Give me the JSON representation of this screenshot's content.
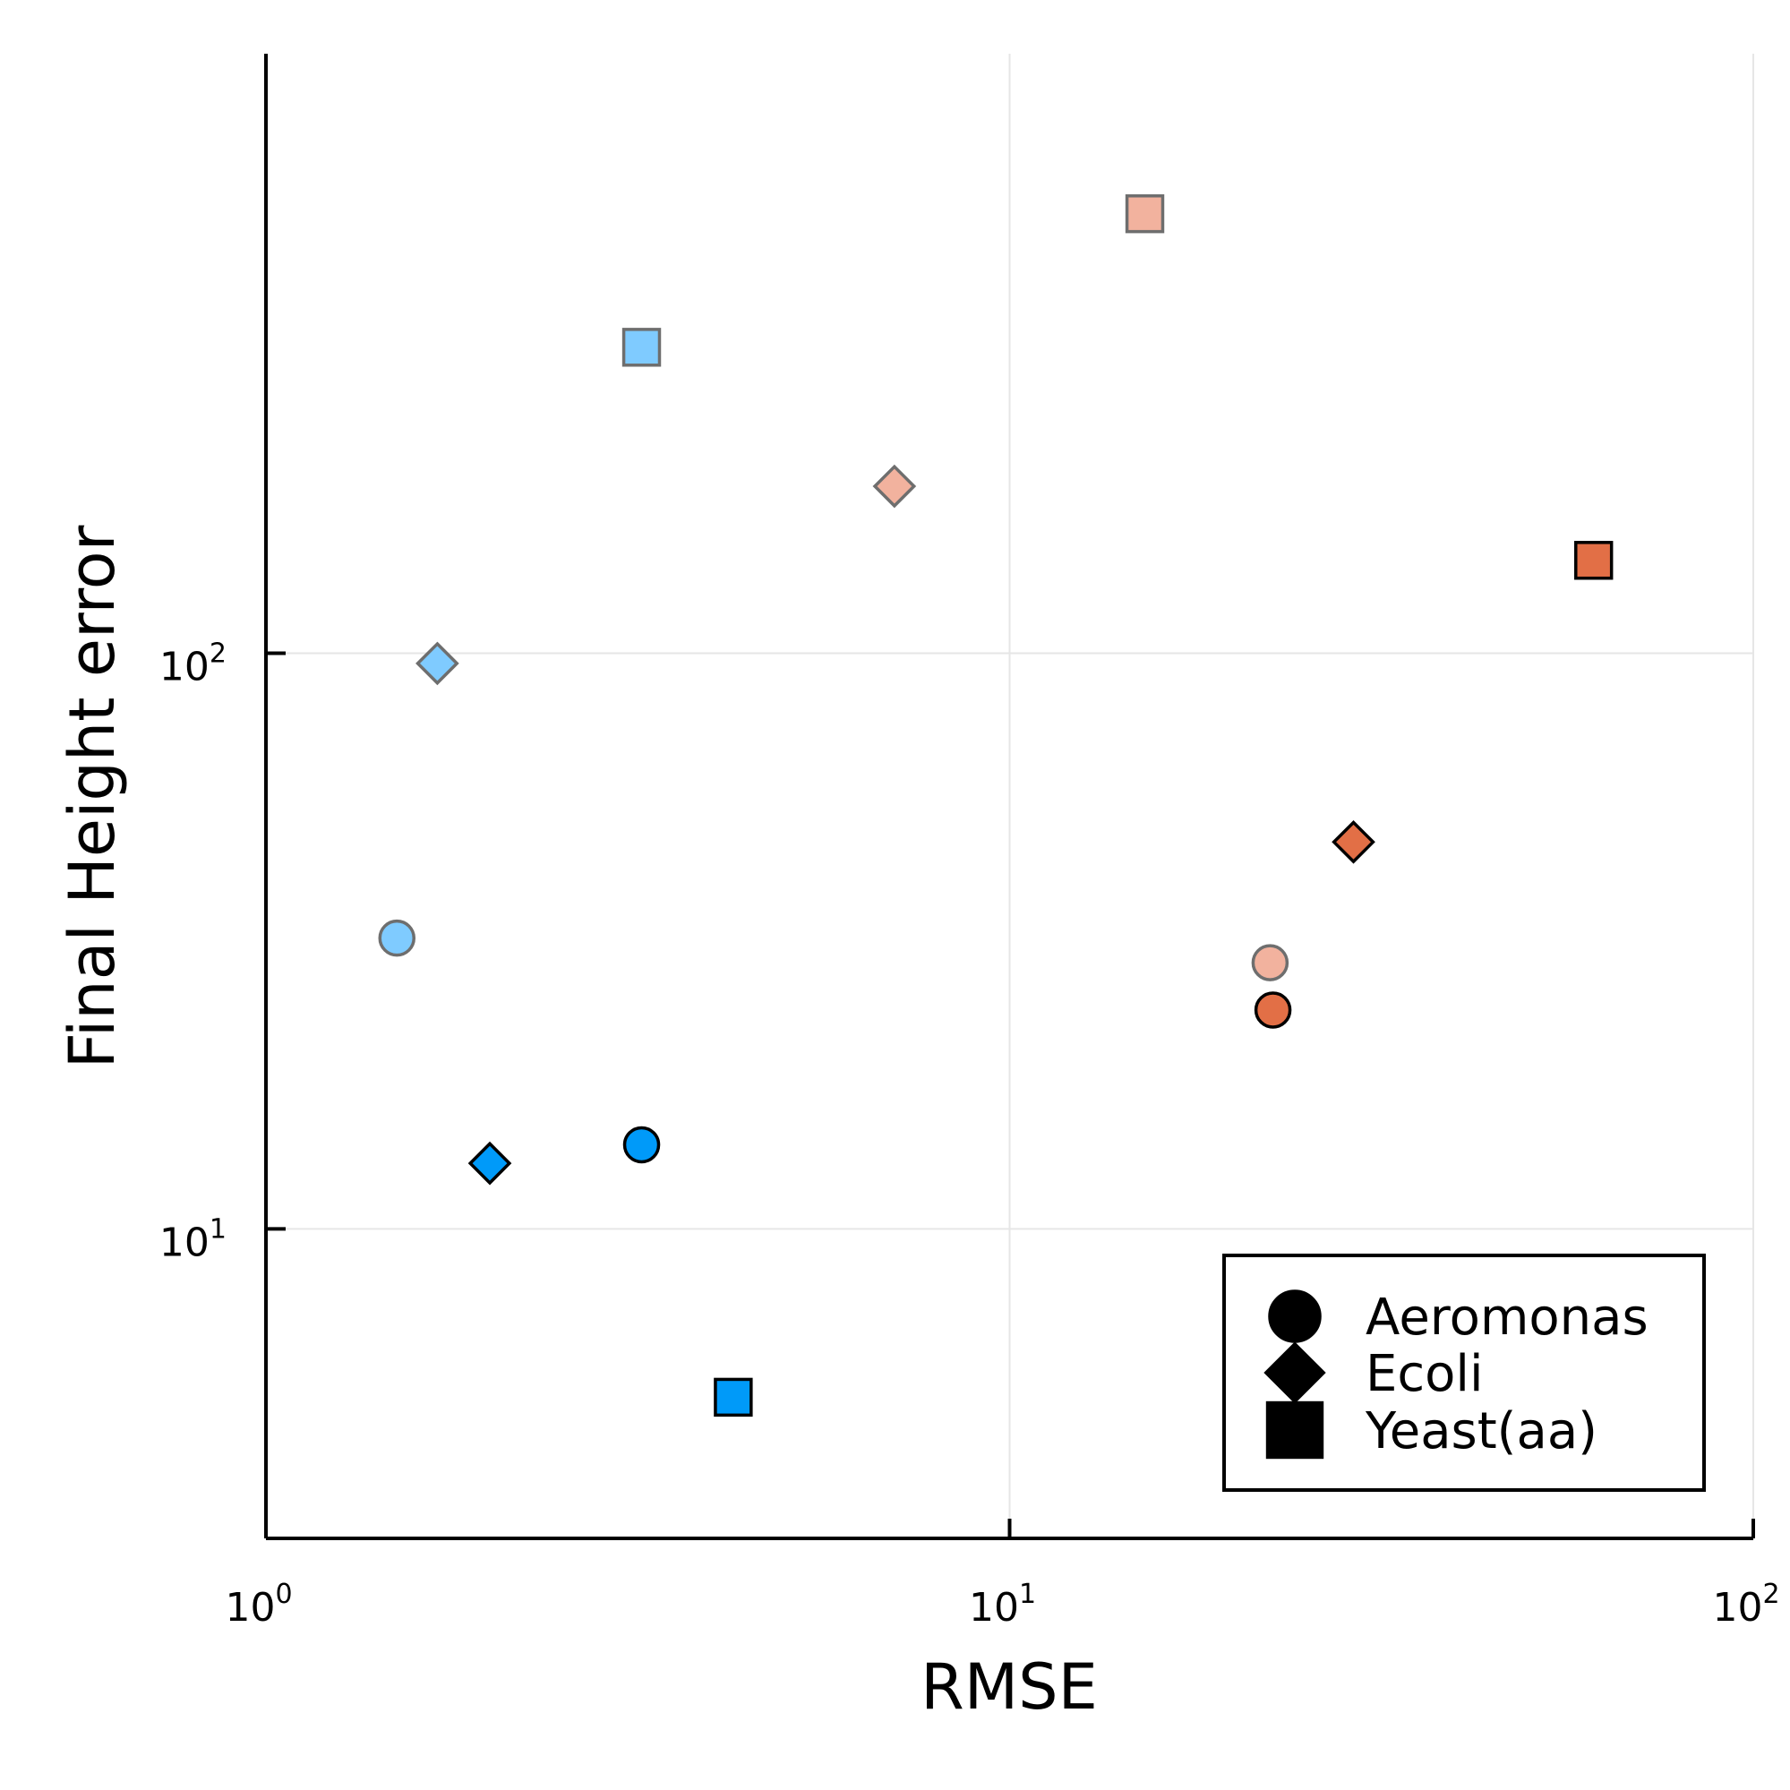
{
  "chart_data": {
    "type": "scatter",
    "xlabel": "RMSE",
    "ylabel": "Final Height error",
    "x_scale": "log10",
    "y_scale": "log10",
    "xlim": [
      1,
      100
    ],
    "ylim": [
      2.9,
      1100
    ],
    "grid": true,
    "x_ticks": [
      {
        "value": 1,
        "base": "10",
        "exp": "0"
      },
      {
        "value": 10,
        "base": "10",
        "exp": "1"
      },
      {
        "value": 100,
        "base": "10",
        "exp": "2"
      }
    ],
    "y_ticks": [
      {
        "value": 10,
        "base": "10",
        "exp": "1"
      },
      {
        "value": 100,
        "base": "10",
        "exp": "2"
      }
    ],
    "legend_position": "bottom-right",
    "legend": [
      {
        "label": "Aeromonas",
        "marker": "circle"
      },
      {
        "label": "Ecoli",
        "marker": "diamond"
      },
      {
        "label": "Yeast(aa)",
        "marker": "square"
      }
    ],
    "points": [
      {
        "x": 1.5,
        "y": 32,
        "marker": "circle",
        "color": "#7fcbff",
        "muted": true
      },
      {
        "x": 1.7,
        "y": 96,
        "marker": "diamond",
        "color": "#7fcbff",
        "muted": true
      },
      {
        "x": 3.2,
        "y": 340,
        "marker": "square",
        "color": "#7fcbff",
        "muted": true
      },
      {
        "x": 3.2,
        "y": 14,
        "marker": "circle",
        "color": "#009af9",
        "muted": false
      },
      {
        "x": 2.0,
        "y": 13,
        "marker": "diamond",
        "color": "#009af9",
        "muted": false
      },
      {
        "x": 4.25,
        "y": 5.1,
        "marker": "square",
        "color": "#009af9",
        "muted": false
      },
      {
        "x": 7.0,
        "y": 195,
        "marker": "diamond",
        "color": "#f2b29e",
        "muted": true
      },
      {
        "x": 15.2,
        "y": 580,
        "marker": "square",
        "color": "#f2b29e",
        "muted": true
      },
      {
        "x": 22.4,
        "y": 29,
        "marker": "circle",
        "color": "#f2b29e",
        "muted": true
      },
      {
        "x": 22.6,
        "y": 24,
        "marker": "circle",
        "color": "#e26f46",
        "muted": false
      },
      {
        "x": 29.0,
        "y": 47,
        "marker": "diamond",
        "color": "#e26f46",
        "muted": false
      },
      {
        "x": 61.0,
        "y": 145,
        "marker": "square",
        "color": "#e26f46",
        "muted": false
      }
    ]
  }
}
